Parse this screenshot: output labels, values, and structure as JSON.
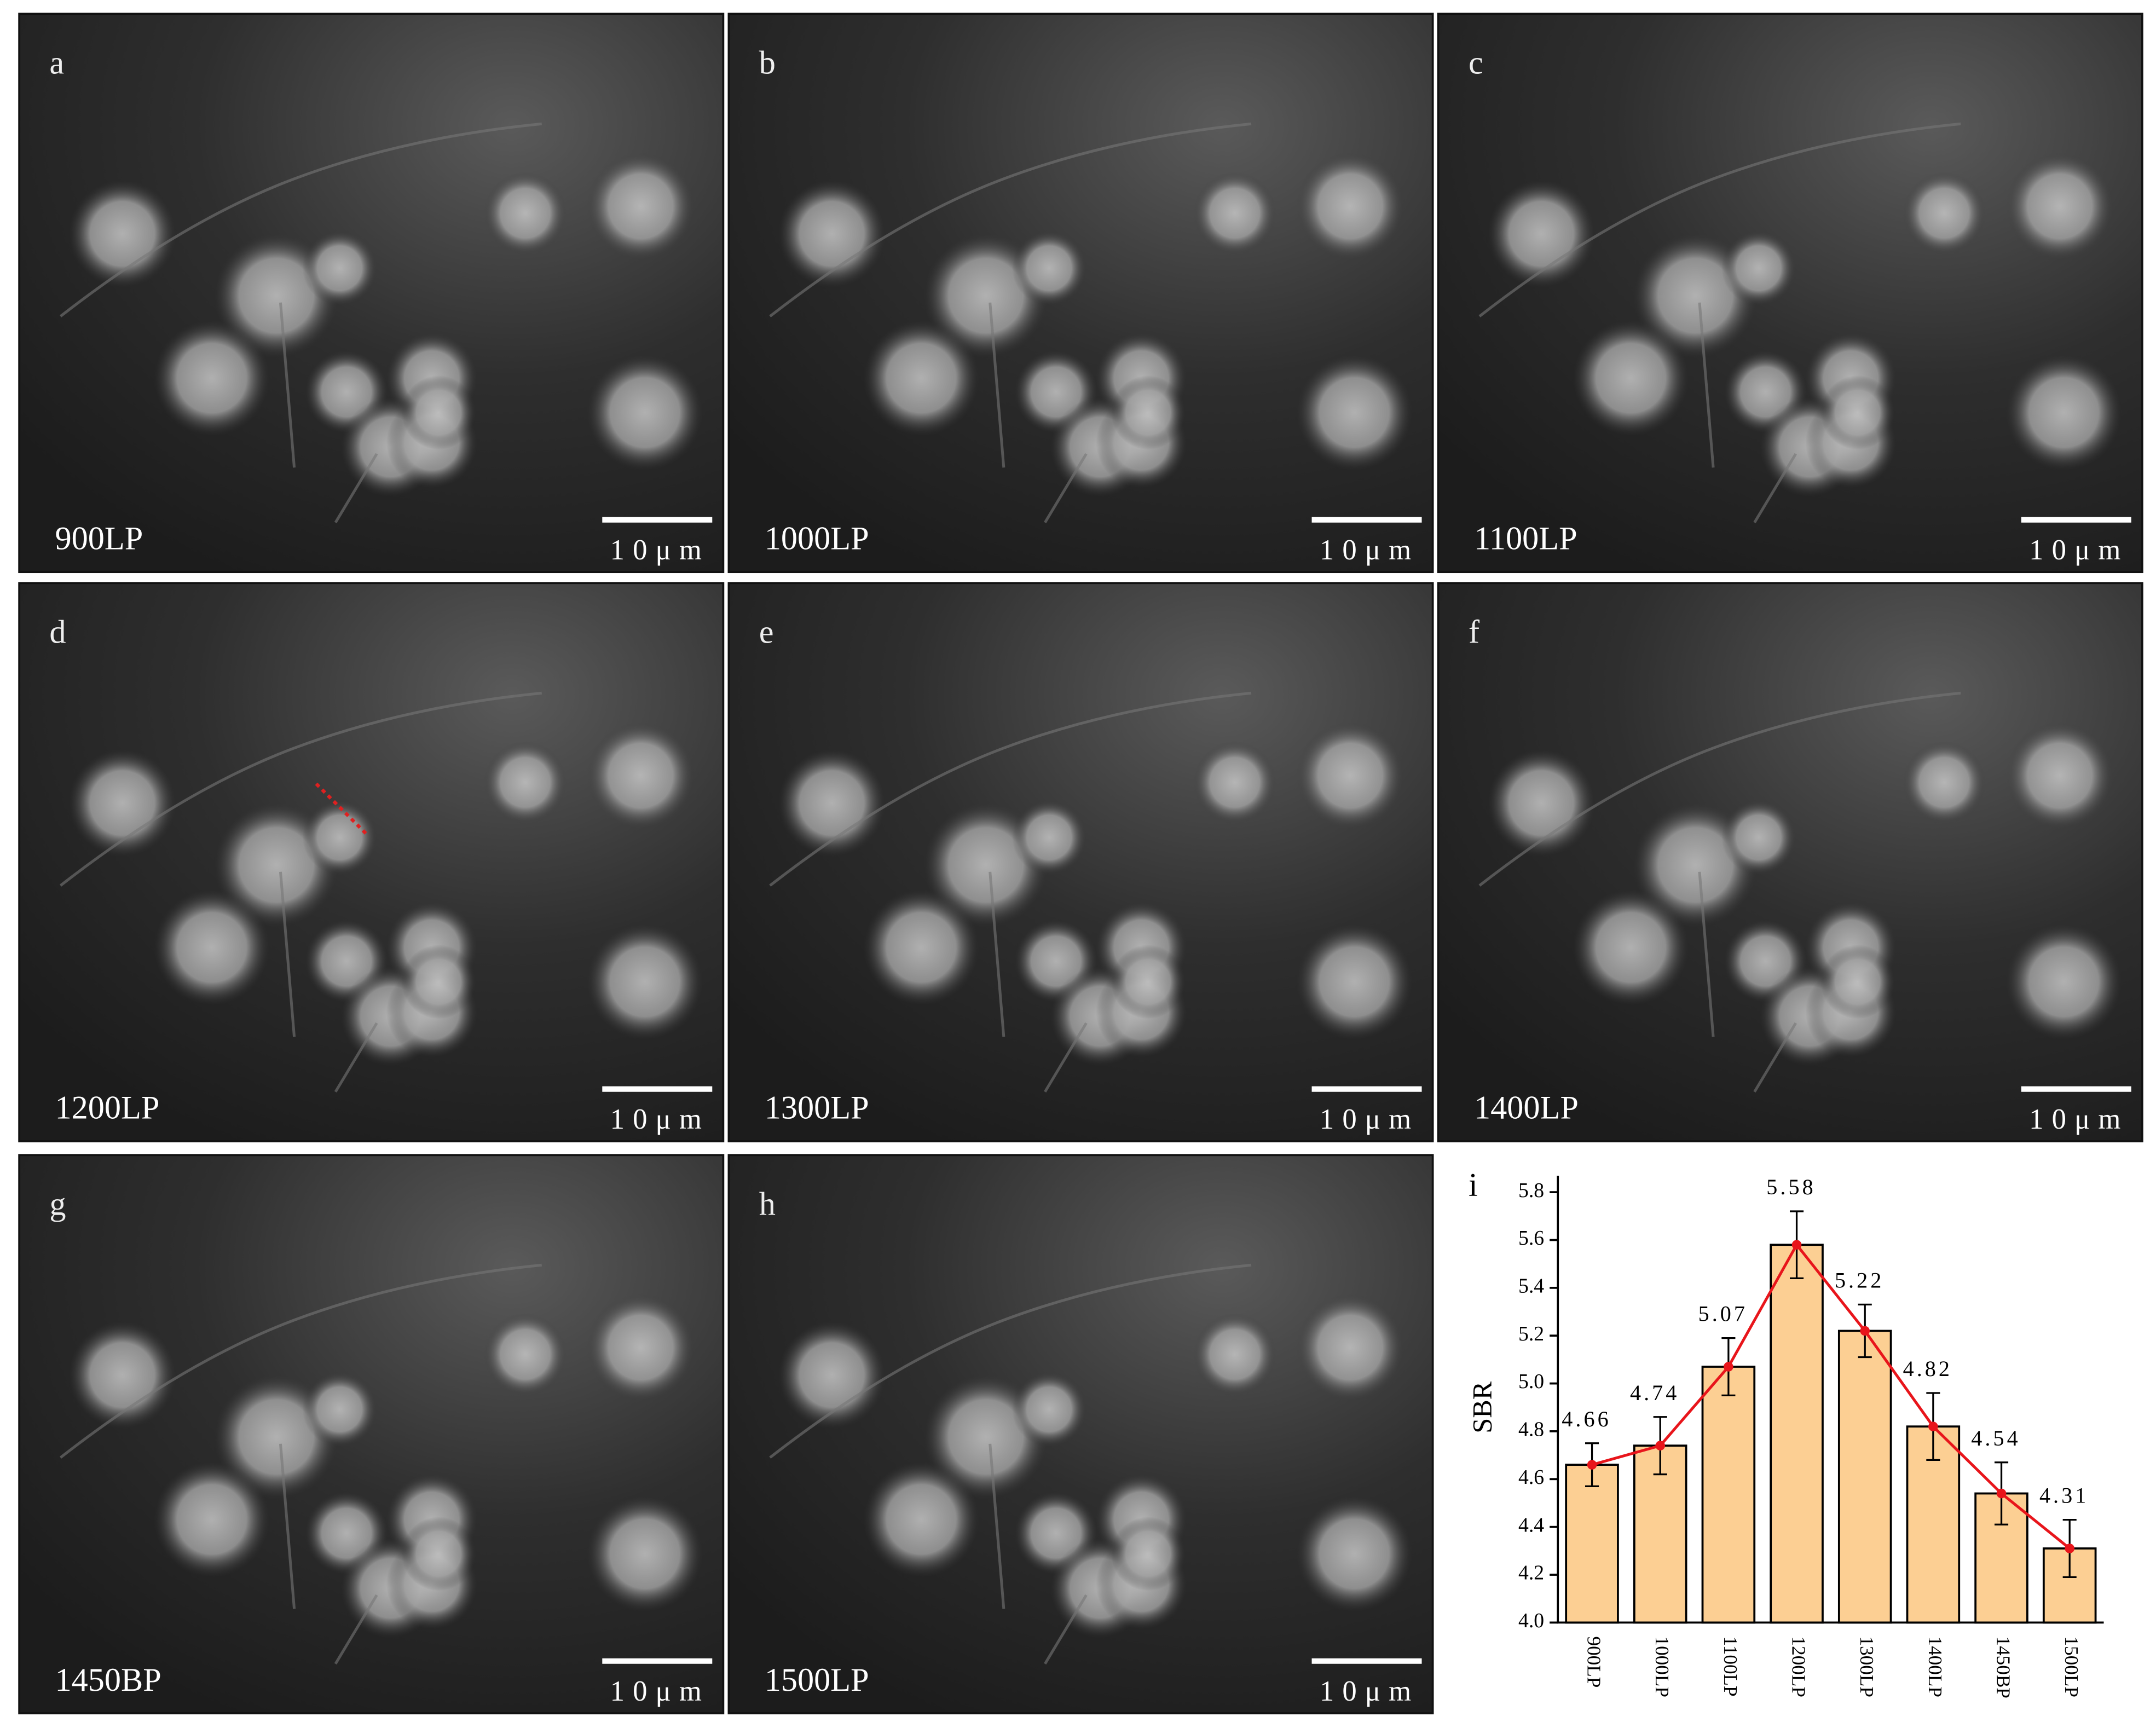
{
  "panels": [
    {
      "letter": "a",
      "label": "900LP",
      "scale": "10μm"
    },
    {
      "letter": "b",
      "label": "1000LP",
      "scale": "10μm"
    },
    {
      "letter": "c",
      "label": "1100LP",
      "scale": "10μm"
    },
    {
      "letter": "d",
      "label": "1200LP",
      "scale": "10μm"
    },
    {
      "letter": "e",
      "label": "1300LP",
      "scale": "10μm"
    },
    {
      "letter": "f",
      "label": "1400LP",
      "scale": "10μm"
    },
    {
      "letter": "g",
      "label": "1450BP",
      "scale": "10μm"
    },
    {
      "letter": "h",
      "label": "1500LP",
      "scale": "10μm"
    }
  ],
  "chart_data": {
    "type": "bar",
    "panel_label": "i",
    "y_label": "SBR",
    "categories": [
      "900LP",
      "1000LP",
      "1100LP",
      "1200LP",
      "1300LP",
      "1400LP",
      "1450BP",
      "1500LP"
    ],
    "values": [
      4.66,
      4.74,
      5.07,
      5.58,
      5.22,
      4.82,
      4.54,
      4.31
    ],
    "errors": [
      0.09,
      0.12,
      0.12,
      0.14,
      0.11,
      0.14,
      0.13,
      0.12
    ],
    "color": "#fccf93",
    "line_color": "#e8151b",
    "ylim": [
      4.0,
      5.8
    ],
    "yticks": [
      {
        "value": 4.0,
        "label": "4.0"
      },
      4.2,
      4.4,
      4.6,
      4.8,
      {
        "value": 5.0,
        "label": "5.0"
      },
      5.2,
      5.4,
      5.6,
      5.8
    ]
  }
}
